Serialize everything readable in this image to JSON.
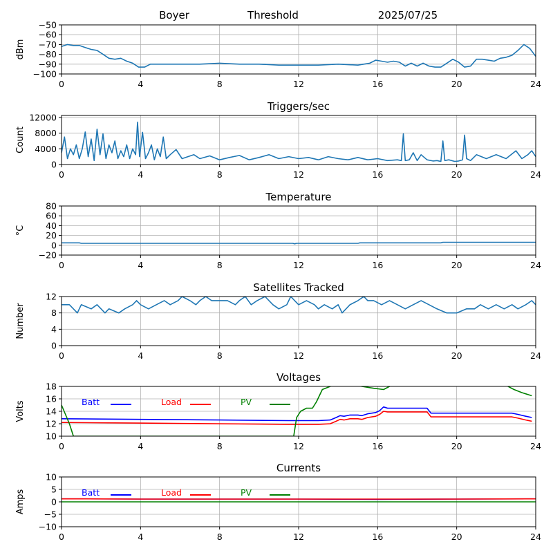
{
  "header": {
    "station": "Boyer",
    "mode": "Threshold",
    "date": "2025/07/25"
  },
  "colors": {
    "series": "#1f77b4",
    "batt": "#0000ff",
    "load": "#ff0000",
    "pv": "#008000",
    "grid": "#b0b0b0",
    "axis": "#000000"
  },
  "chart_data": [
    {
      "type": "line",
      "title": "",
      "xlabel": "",
      "ylabel": "dBm",
      "xlim": [
        0,
        24
      ],
      "ylim": [
        -100,
        -50
      ],
      "xticks": [
        0,
        4,
        8,
        12,
        16,
        20,
        24
      ],
      "yticks": [
        -100,
        -90,
        -80,
        -70,
        -60,
        -50
      ],
      "grid": true,
      "series": [
        {
          "name": "",
          "color": "#1f77b4",
          "x": [
            0,
            0.3,
            0.6,
            0.9,
            1.2,
            1.5,
            1.8,
            2.1,
            2.4,
            2.7,
            3.0,
            3.3,
            3.6,
            3.9,
            4.2,
            4.5,
            5,
            6,
            7,
            8,
            9,
            10,
            11,
            12,
            13,
            14,
            15,
            15.3,
            15.6,
            15.9,
            16.2,
            16.5,
            16.8,
            17.1,
            17.4,
            17.7,
            18.0,
            18.3,
            18.6,
            18.9,
            19.2,
            19.5,
            19.8,
            20.1,
            20.4,
            20.7,
            21.0,
            21.3,
            21.6,
            21.9,
            22.2,
            22.5,
            22.8,
            23.1,
            23.4,
            23.7,
            24
          ],
          "y": [
            -72,
            -70,
            -71,
            -71,
            -73,
            -75,
            -76,
            -80,
            -84,
            -85,
            -84,
            -87,
            -89,
            -93,
            -93,
            -90,
            -90,
            -90,
            -90,
            -89,
            -90,
            -90,
            -91,
            -91,
            -91,
            -90,
            -91,
            -90,
            -89,
            -86,
            -87,
            -88,
            -87,
            -88,
            -92,
            -89,
            -92,
            -89,
            -92,
            -93,
            -93,
            -89,
            -85,
            -88,
            -93,
            -92,
            -85,
            -85,
            -86,
            -87,
            -84,
            -83,
            -81,
            -76,
            -70,
            -74,
            -82
          ]
        }
      ]
    },
    {
      "type": "line",
      "title": "Triggers/sec",
      "xlabel": "",
      "ylabel": "Count",
      "xlim": [
        0,
        24
      ],
      "ylim": [
        0,
        12500
      ],
      "xticks": [
        0,
        4,
        8,
        12,
        16,
        20,
        24
      ],
      "yticks": [
        0,
        4000,
        8000,
        12000
      ],
      "grid": true,
      "series": [
        {
          "name": "",
          "color": "#1f77b4",
          "x": [
            0,
            0.15,
            0.3,
            0.45,
            0.6,
            0.75,
            0.9,
            1.05,
            1.2,
            1.35,
            1.5,
            1.65,
            1.8,
            1.95,
            2.1,
            2.25,
            2.4,
            2.55,
            2.7,
            2.85,
            3.0,
            3.15,
            3.3,
            3.45,
            3.6,
            3.75,
            3.85,
            3.95,
            4.1,
            4.25,
            4.4,
            4.55,
            4.7,
            4.85,
            5.0,
            5.15,
            5.3,
            5.5,
            5.8,
            6.1,
            6.4,
            6.7,
            7.0,
            7.5,
            8,
            8.5,
            9,
            9.5,
            10,
            10.5,
            11,
            11.5,
            12,
            12.5,
            13,
            13.5,
            14,
            14.5,
            15,
            15.5,
            16,
            16.5,
            17.0,
            17.2,
            17.3,
            17.4,
            17.6,
            17.8,
            18.0,
            18.2,
            18.5,
            18.8,
            19.0,
            19.2,
            19.3,
            19.4,
            19.6,
            19.9,
            20.1,
            20.3,
            20.4,
            20.5,
            20.7,
            21.0,
            21.5,
            22.0,
            22.5,
            23.0,
            23.3,
            23.6,
            23.8,
            24
          ],
          "y": [
            3000,
            7000,
            1500,
            4000,
            2500,
            5000,
            1500,
            4000,
            8300,
            2000,
            6500,
            1000,
            9000,
            2500,
            7800,
            1500,
            5000,
            3000,
            6000,
            1500,
            3500,
            2000,
            5000,
            1500,
            4000,
            2500,
            10800,
            2000,
            8200,
            1500,
            3000,
            5000,
            1200,
            4000,
            2000,
            7000,
            1500,
            2500,
            3800,
            1500,
            2000,
            2500,
            1500,
            2200,
            1200,
            1800,
            2300,
            1200,
            1800,
            2500,
            1500,
            2000,
            1500,
            1800,
            1200,
            2000,
            1500,
            1200,
            1800,
            1200,
            1500,
            1000,
            1200,
            1000,
            7800,
            1000,
            1200,
            3000,
            1000,
            2500,
            1200,
            900,
            1000,
            800,
            6000,
            1000,
            1200,
            800,
            900,
            1200,
            7500,
            1500,
            1000,
            2500,
            1500,
            2500,
            1500,
            3500,
            1500,
            2500,
            3500,
            2000
          ]
        }
      ]
    },
    {
      "type": "line",
      "title": "Temperature",
      "xlabel": "",
      "ylabel": "°C",
      "xlim": [
        0,
        24
      ],
      "ylim": [
        -20,
        80
      ],
      "xticks": [
        0,
        4,
        8,
        12,
        16,
        20,
        24
      ],
      "yticks": [
        -20,
        0,
        20,
        40,
        60,
        80
      ],
      "grid": true,
      "series": [
        {
          "name": "",
          "color": "#1f77b4",
          "x": [
            0,
            0.9,
            1.0,
            11.7,
            11.8,
            11.9,
            12.0,
            15.0,
            15.1,
            19.2,
            19.3,
            24
          ],
          "y": [
            5,
            5,
            4,
            4,
            3,
            4,
            4,
            4,
            5,
            5,
            6,
            6
          ]
        }
      ]
    },
    {
      "type": "line",
      "title": "Satellites Tracked",
      "xlabel": "",
      "ylabel": "Number",
      "xlim": [
        0,
        24
      ],
      "ylim": [
        0,
        12
      ],
      "xticks": [
        0,
        4,
        8,
        12,
        16,
        20,
        24
      ],
      "yticks": [
        0,
        4,
        8,
        12
      ],
      "grid": true,
      "series": [
        {
          "name": "",
          "color": "#1f77b4",
          "x": [
            0,
            0.4,
            0.6,
            0.8,
            1.0,
            1.5,
            1.8,
            2.0,
            2.2,
            2.4,
            2.9,
            3.2,
            3.6,
            3.8,
            4.0,
            4.4,
            4.8,
            5.2,
            5.5,
            5.9,
            6.1,
            6.5,
            6.8,
            7.0,
            7.3,
            7.6,
            8.0,
            8.4,
            8.8,
            9.0,
            9.3,
            9.6,
            9.9,
            10.3,
            10.7,
            11.0,
            11.4,
            11.6,
            11.8,
            12.0,
            12.4,
            12.8,
            13.0,
            13.3,
            13.7,
            14.0,
            14.2,
            14.4,
            14.6,
            15.0,
            15.3,
            15.5,
            15.8,
            16.2,
            16.6,
            17.0,
            17.4,
            17.8,
            18.2,
            18.6,
            19.0,
            19.5,
            20.0,
            20.5,
            20.9,
            21.2,
            21.6,
            22.0,
            22.4,
            22.8,
            23.1,
            23.5,
            23.8,
            24
          ],
          "y": [
            10,
            10,
            9,
            8,
            10,
            9,
            10,
            9,
            8,
            9,
            8,
            9,
            10,
            11,
            10,
            9,
            10,
            11,
            10,
            11,
            12,
            11,
            10,
            11,
            12,
            11,
            11,
            11,
            10,
            11,
            12,
            10,
            11,
            12,
            10,
            9,
            10,
            12,
            11,
            10,
            11,
            10,
            9,
            10,
            9,
            10,
            8,
            9,
            10,
            11,
            12,
            11,
            11,
            10,
            11,
            10,
            9,
            10,
            11,
            10,
            9,
            8,
            8,
            9,
            9,
            10,
            9,
            10,
            9,
            10,
            9,
            10,
            11,
            10
          ]
        }
      ]
    },
    {
      "type": "line",
      "title": "Voltages",
      "xlabel": "",
      "ylabel": "Volts",
      "xlim": [
        0,
        24
      ],
      "ylim": [
        10,
        18
      ],
      "xticks": [
        0,
        4,
        8,
        12,
        16,
        20,
        24
      ],
      "yticks": [
        10,
        12,
        14,
        16,
        18
      ],
      "grid": true,
      "legend": "top-left",
      "series": [
        {
          "name": "Batt",
          "color": "#0000ff",
          "x": [
            0,
            4,
            8,
            11.5,
            13,
            13.6,
            13.9,
            14.1,
            14.3,
            14.6,
            15.0,
            15.2,
            15.5,
            15.9,
            16.1,
            16.3,
            16.5,
            17.0,
            18.0,
            18.5,
            18.7,
            20,
            22.8,
            23.1,
            23.5,
            23.8
          ],
          "y": [
            12.8,
            12.7,
            12.6,
            12.5,
            12.5,
            12.6,
            13.0,
            13.3,
            13.2,
            13.4,
            13.4,
            13.3,
            13.6,
            13.8,
            14.1,
            14.7,
            14.5,
            14.5,
            14.5,
            14.5,
            13.7,
            13.7,
            13.7,
            13.5,
            13.2,
            13.0
          ]
        },
        {
          "name": "Load",
          "color": "#ff0000",
          "x": [
            0,
            4,
            8,
            11.5,
            13,
            13.6,
            13.9,
            14.1,
            14.3,
            14.6,
            15.0,
            15.2,
            15.5,
            15.9,
            16.1,
            16.3,
            16.5,
            17.0,
            18.0,
            18.5,
            18.7,
            20,
            22.8,
            23.1,
            23.5,
            23.8
          ],
          "y": [
            12.2,
            12.1,
            12.0,
            11.9,
            11.9,
            12.0,
            12.4,
            12.7,
            12.6,
            12.8,
            12.8,
            12.7,
            13.0,
            13.2,
            13.5,
            14.0,
            13.9,
            13.9,
            13.9,
            13.9,
            13.1,
            13.1,
            13.1,
            12.9,
            12.6,
            12.4
          ]
        },
        {
          "name": "PV",
          "color": "#008000",
          "x": [
            0,
            0.2,
            0.4,
            0.6,
            11.75,
            11.9,
            12.1,
            12.4,
            12.7,
            12.9,
            13.2,
            13.6,
            14.0,
            15.2,
            15.8,
            16.3,
            16.6,
            17.0,
            22.3,
            22.6,
            22.9,
            23.3,
            23.8
          ],
          "y": [
            15.0,
            13.5,
            12.0,
            10.0,
            10.0,
            13.0,
            14.0,
            14.5,
            14.5,
            15.5,
            17.5,
            18.0,
            18.5,
            18.0,
            17.7,
            17.5,
            18.0,
            18.5,
            18.5,
            18.0,
            17.5,
            17.0,
            16.5
          ]
        }
      ]
    },
    {
      "type": "line",
      "title": "Currents",
      "xlabel": "",
      "ylabel": "Amps",
      "xlim": [
        0,
        24
      ],
      "ylim": [
        -10,
        10
      ],
      "xticks": [
        0,
        4,
        8,
        12,
        16,
        20,
        24
      ],
      "yticks": [
        -10,
        -5,
        0,
        5,
        10
      ],
      "grid": true,
      "legend": "top-left",
      "series": [
        {
          "name": "Batt",
          "color": "#0000ff",
          "x": [
            0,
            1,
            4,
            8,
            12,
            16,
            20,
            24
          ],
          "y": [
            1.2,
            1.2,
            1.1,
            1.1,
            1.1,
            1.0,
            1.1,
            1.2
          ]
        },
        {
          "name": "Load",
          "color": "#ff0000",
          "x": [
            0,
            1,
            4,
            8,
            12,
            16,
            20,
            24
          ],
          "y": [
            1.2,
            1.2,
            1.1,
            1.1,
            1.1,
            1.1,
            1.1,
            1.2
          ]
        },
        {
          "name": "PV",
          "color": "#008000",
          "x": [
            0,
            4,
            8,
            12,
            16,
            20,
            24
          ],
          "y": [
            0,
            0,
            0,
            0,
            0,
            0,
            0
          ]
        }
      ]
    }
  ]
}
